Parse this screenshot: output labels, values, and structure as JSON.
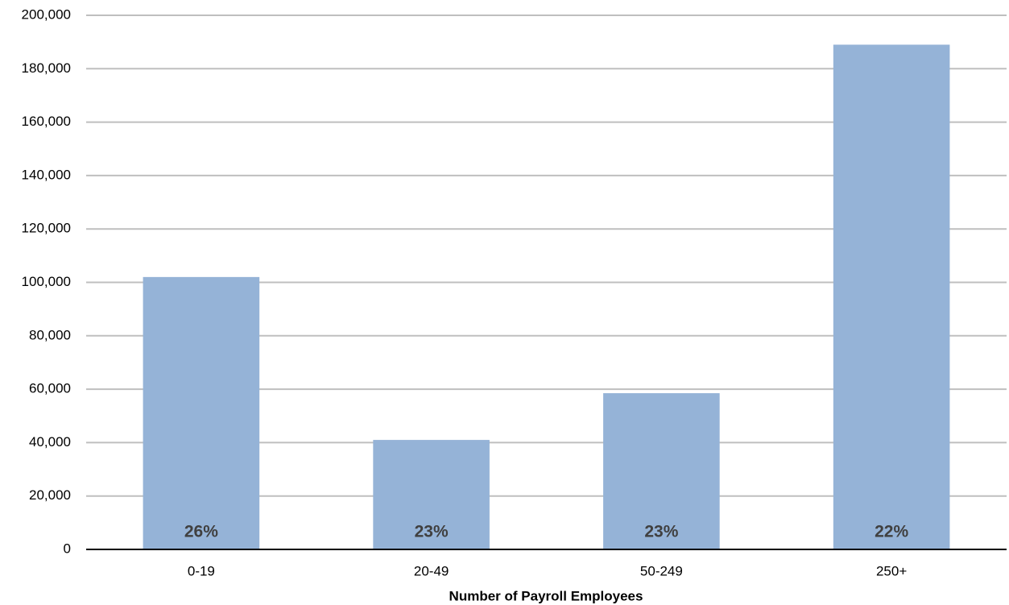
{
  "chart_data": {
    "type": "bar",
    "xlabel": "Number of Payroll Employees",
    "categories": [
      "0-19",
      "20-49",
      "50-249",
      "250+"
    ],
    "values": [
      102000,
      41000,
      58500,
      189000
    ],
    "bar_annotations": [
      "26%",
      "23%",
      "23%",
      "22%"
    ],
    "color": "#95b3d7",
    "ylim": [
      0,
      200000
    ],
    "yticks": [
      0,
      {
        "value": 20000,
        "label": "20,000"
      },
      {
        "value": 40000,
        "label": "40,000"
      },
      {
        "value": 60000,
        "label": "60,000"
      },
      {
        "value": 80000,
        "label": "80,000"
      },
      {
        "value": 100000,
        "label": "100,000"
      },
      {
        "value": 120000,
        "label": "120,000"
      },
      {
        "value": 140000,
        "label": "140,000"
      },
      {
        "value": 160000,
        "label": "160,000"
      },
      {
        "value": 180000,
        "label": "180,000"
      },
      {
        "value": 200000,
        "label": "200,000"
      }
    ],
    "grid": true
  }
}
